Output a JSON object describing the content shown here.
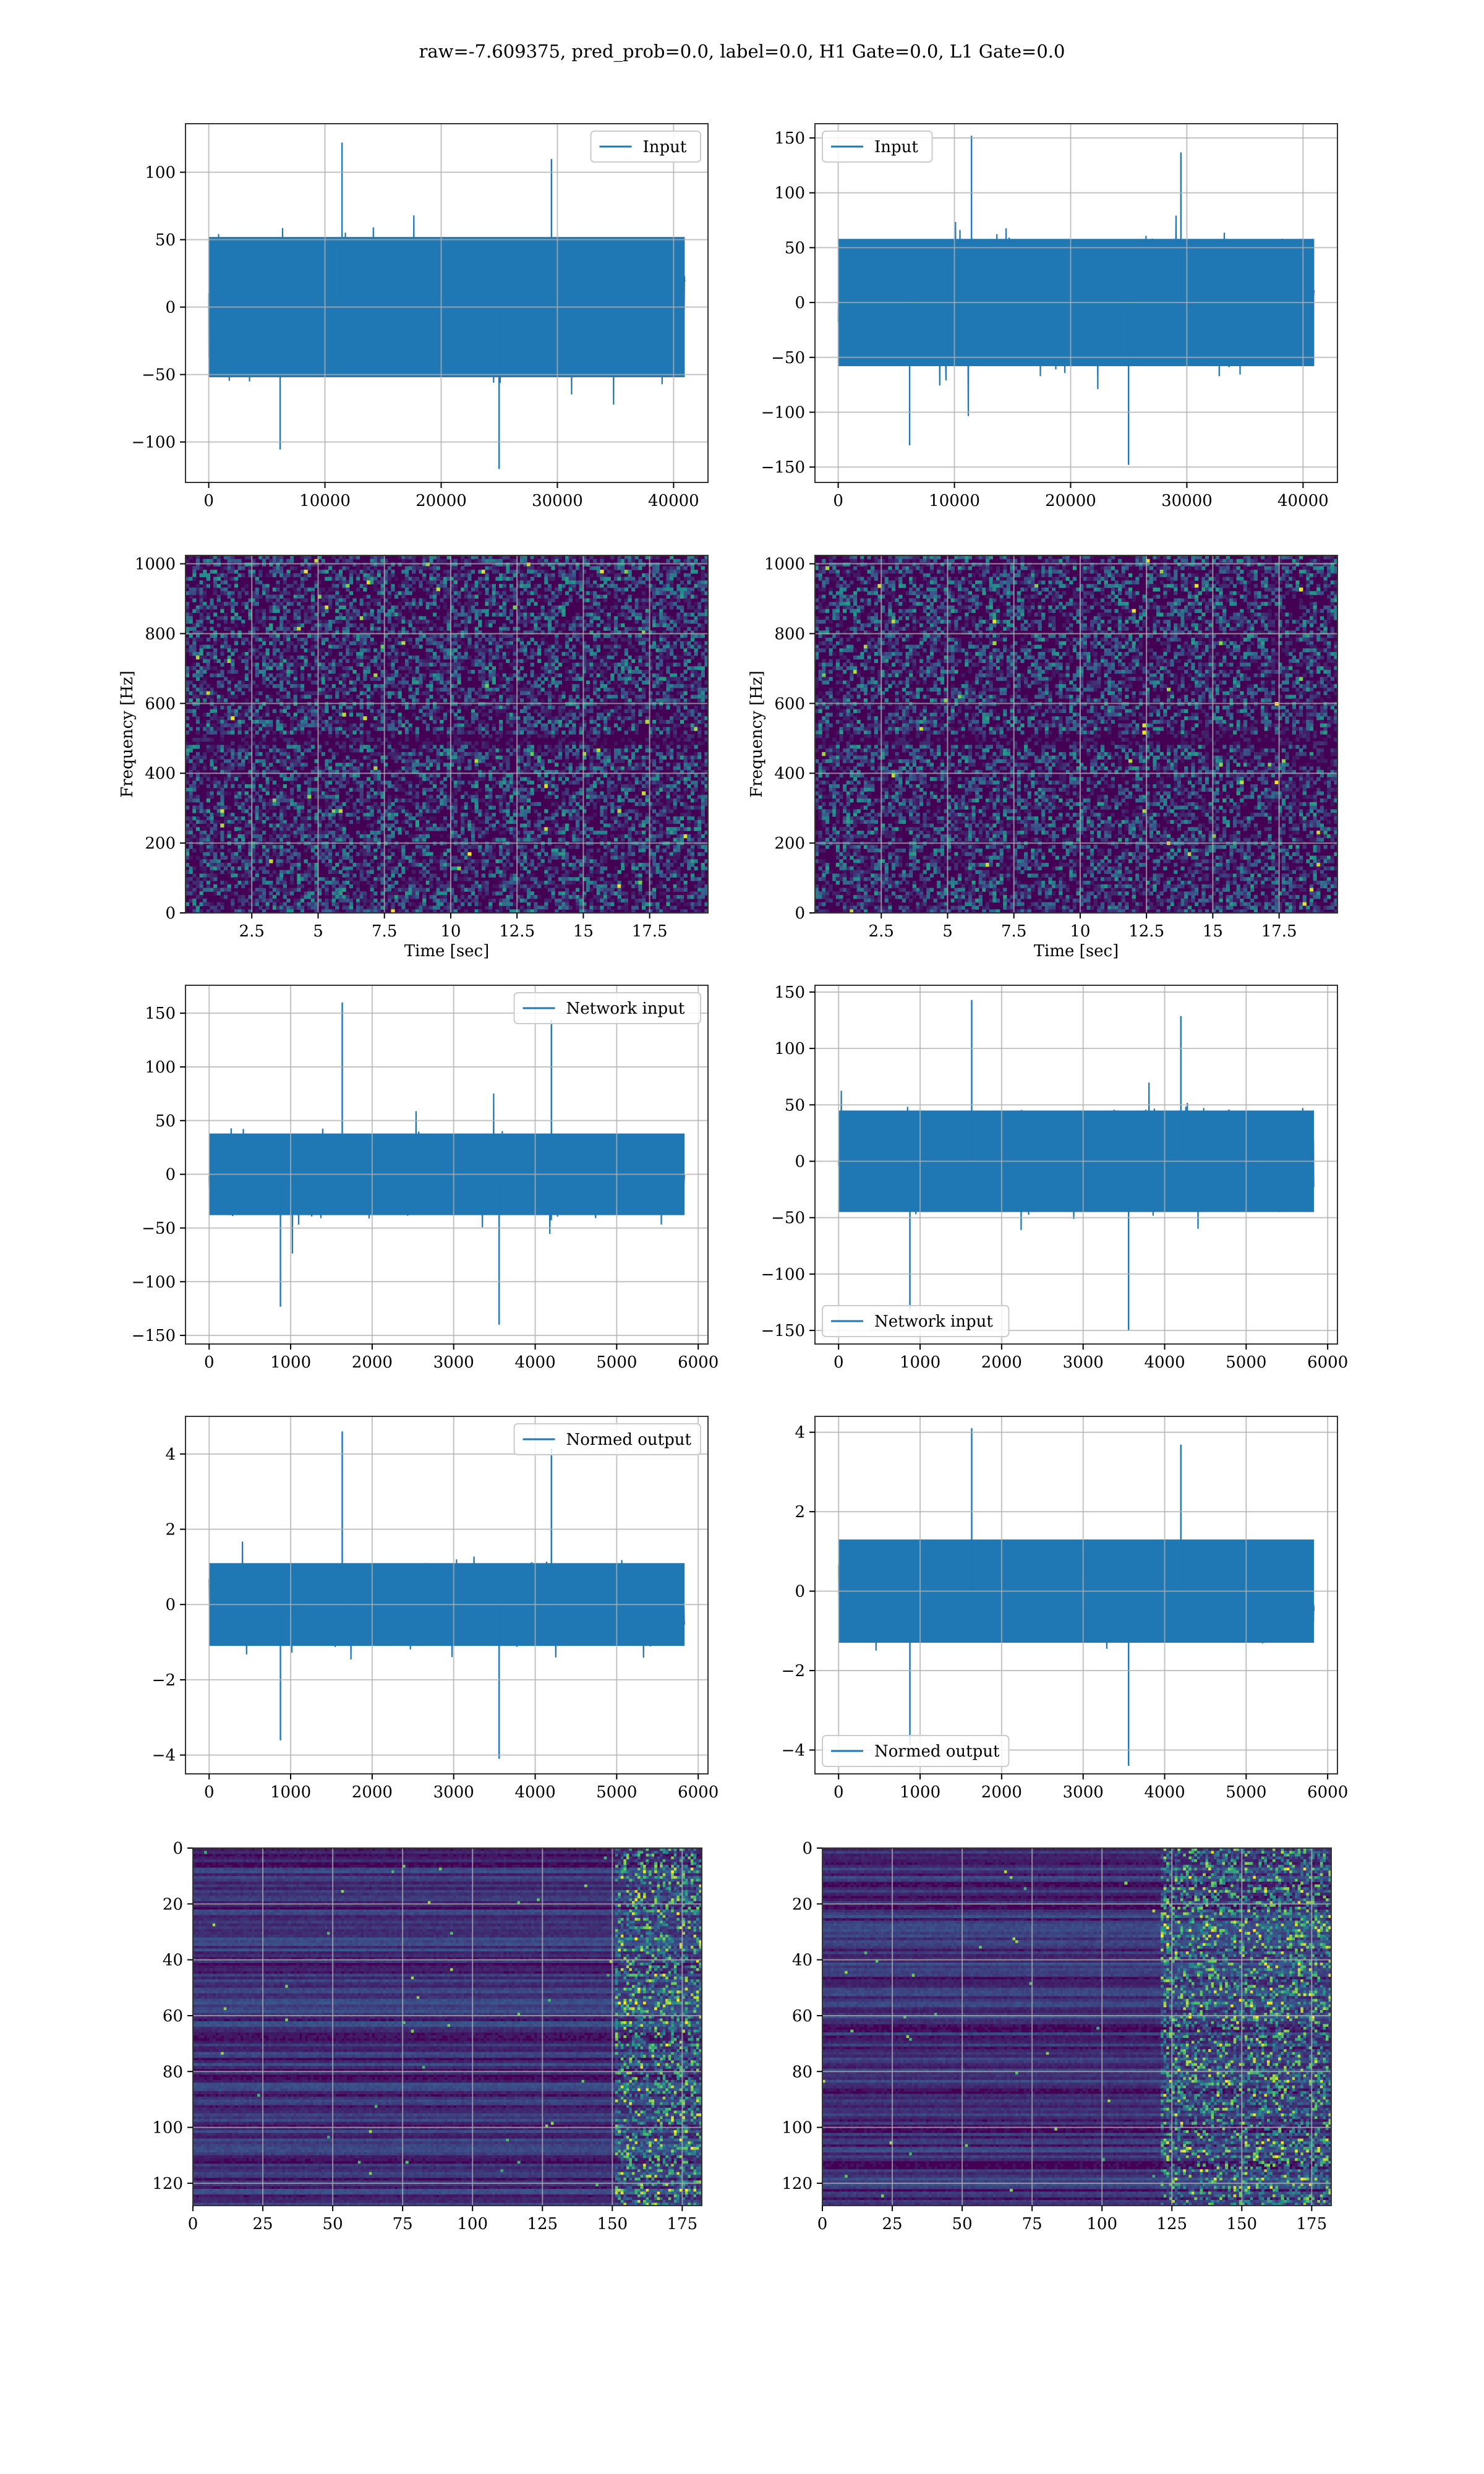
{
  "figure": {
    "title": "raw=-7.609375, pred_prob=0.0, label=0.0, H1 Gate=0.0, L1 Gate=0.0"
  },
  "style": {
    "line_color": "#1f77b4",
    "grid_color": "#b0b0b0",
    "colormap": "viridis",
    "colormap_stops": [
      "#440154",
      "#3b528b",
      "#21918c",
      "#5ec962",
      "#fde725"
    ]
  },
  "chart_data": [
    {
      "type": "line",
      "title": "",
      "xlabel": "",
      "ylabel": "",
      "xlim": [
        -2000,
        42960
      ],
      "ylim": [
        -130,
        136
      ],
      "xticks": [
        0,
        10000,
        20000,
        30000,
        40000
      ],
      "yticks": [
        -100,
        -50,
        0,
        50,
        100
      ],
      "grid": true,
      "legend": "upper right",
      "series": [
        {
          "name": "Input",
          "x_range": [
            0,
            40959
          ],
          "n_points": 40960,
          "mean": 0,
          "band": [
            -52,
            52
          ],
          "peak_max": 122,
          "peak_min": -120
        }
      ]
    },
    {
      "type": "line",
      "title": "",
      "xlabel": "",
      "ylabel": "",
      "xlim": [
        -2000,
        42960
      ],
      "ylim": [
        -164,
        163
      ],
      "xticks": [
        0,
        10000,
        20000,
        30000,
        40000
      ],
      "yticks": [
        -150,
        -100,
        -50,
        0,
        50,
        100,
        150
      ],
      "grid": true,
      "legend": "upper left",
      "series": [
        {
          "name": "Input",
          "x_range": [
            0,
            40959
          ],
          "n_points": 40960,
          "mean": 0,
          "band": [
            -58,
            58
          ],
          "peak_max": 152,
          "peak_min": -148
        }
      ]
    },
    {
      "type": "heatmap",
      "title": "",
      "xlabel": "Time [sec]",
      "ylabel": "Frequency [Hz]",
      "xlim": [
        0,
        19.7
      ],
      "ylim": [
        0,
        1024
      ],
      "xticks": [
        2.5,
        5.0,
        7.5,
        10.0,
        12.5,
        15.0,
        17.5
      ],
      "yticks": [
        0,
        200,
        400,
        600,
        800,
        1000
      ],
      "grid": true,
      "description_values": {
        "dominant_level": "low",
        "dark_band_hz": [
          480,
          512
        ]
      }
    },
    {
      "type": "heatmap",
      "title": "",
      "xlabel": "Time [sec]",
      "ylabel": "Frequency [Hz]",
      "xlim": [
        0,
        19.7
      ],
      "ylim": [
        0,
        1024
      ],
      "xticks": [
        2.5,
        5.0,
        7.5,
        10.0,
        12.5,
        15.0,
        17.5
      ],
      "yticks": [
        0,
        200,
        400,
        600,
        800,
        1000
      ],
      "grid": true,
      "description_values": {
        "dominant_level": "low",
        "dark_band_hz": [
          480,
          512
        ]
      }
    },
    {
      "type": "line",
      "title": "",
      "xlabel": "",
      "ylabel": "",
      "xlim": [
        -290,
        6120
      ],
      "ylim": [
        -158,
        176
      ],
      "xticks": [
        0,
        1000,
        2000,
        3000,
        4000,
        5000,
        6000
      ],
      "yticks": [
        -150,
        -100,
        -50,
        0,
        50,
        100,
        150
      ],
      "grid": true,
      "legend": "upper right",
      "series": [
        {
          "name": "Network input",
          "x_range": [
            0,
            5832
          ],
          "n_points": 5833,
          "mean": 0,
          "band": [
            -38,
            38
          ],
          "peak_max": 160,
          "peak_min": -140
        }
      ]
    },
    {
      "type": "line",
      "title": "",
      "xlabel": "",
      "ylabel": "",
      "xlim": [
        -290,
        6120
      ],
      "ylim": [
        -162,
        156
      ],
      "xticks": [
        0,
        1000,
        2000,
        3000,
        4000,
        5000,
        6000
      ],
      "yticks": [
        -150,
        -100,
        -50,
        0,
        50,
        100,
        150
      ],
      "grid": true,
      "legend": "lower left",
      "series": [
        {
          "name": "Network input",
          "x_range": [
            0,
            5832
          ],
          "n_points": 5833,
          "mean": 0,
          "band": [
            -45,
            45
          ],
          "peak_max": 143,
          "peak_min": -150
        }
      ]
    },
    {
      "type": "line",
      "title": "",
      "xlabel": "",
      "ylabel": "",
      "xlim": [
        -290,
        6120
      ],
      "ylim": [
        -4.5,
        5.0
      ],
      "xticks": [
        0,
        1000,
        2000,
        3000,
        4000,
        5000,
        6000
      ],
      "yticks": [
        -4,
        -2,
        0,
        2,
        4
      ],
      "grid": true,
      "legend": "upper right",
      "series": [
        {
          "name": "Normed output",
          "x_range": [
            0,
            5832
          ],
          "n_points": 5833,
          "mean": 0,
          "band": [
            -1.1,
            1.1
          ],
          "peak_max": 4.6,
          "peak_min": -4.1
        }
      ]
    },
    {
      "type": "line",
      "title": "",
      "xlabel": "",
      "ylabel": "",
      "xlim": [
        -290,
        6120
      ],
      "ylim": [
        -4.6,
        4.4
      ],
      "xticks": [
        0,
        1000,
        2000,
        3000,
        4000,
        5000,
        6000
      ],
      "yticks": [
        -4,
        -2,
        0,
        2,
        4
      ],
      "grid": true,
      "legend": "lower left",
      "series": [
        {
          "name": "Normed output",
          "x_range": [
            0,
            5832
          ],
          "n_points": 5833,
          "mean": 0,
          "band": [
            -1.3,
            1.3
          ],
          "peak_max": 4.1,
          "peak_min": -4.4
        }
      ]
    },
    {
      "type": "heatmap",
      "title": "",
      "xlabel": "",
      "ylabel": "",
      "xlim": [
        0,
        182
      ],
      "ylim": [
        128,
        0
      ],
      "xticks": [
        0,
        25,
        50,
        75,
        100,
        125,
        150,
        175
      ],
      "yticks": [
        0,
        20,
        40,
        60,
        80,
        100,
        120
      ],
      "grid": true,
      "description_values": {
        "rows": 128,
        "cols": 182,
        "bright_cols_from": 150
      }
    },
    {
      "type": "heatmap",
      "title": "",
      "xlabel": "",
      "ylabel": "",
      "xlim": [
        0,
        182
      ],
      "ylim": [
        128,
        0
      ],
      "xticks": [
        0,
        25,
        50,
        75,
        100,
        125,
        150,
        175
      ],
      "yticks": [
        0,
        20,
        40,
        60,
        80,
        100,
        120
      ],
      "grid": true,
      "description_values": {
        "rows": 128,
        "cols": 182,
        "bright_cols_from": 120
      }
    }
  ]
}
